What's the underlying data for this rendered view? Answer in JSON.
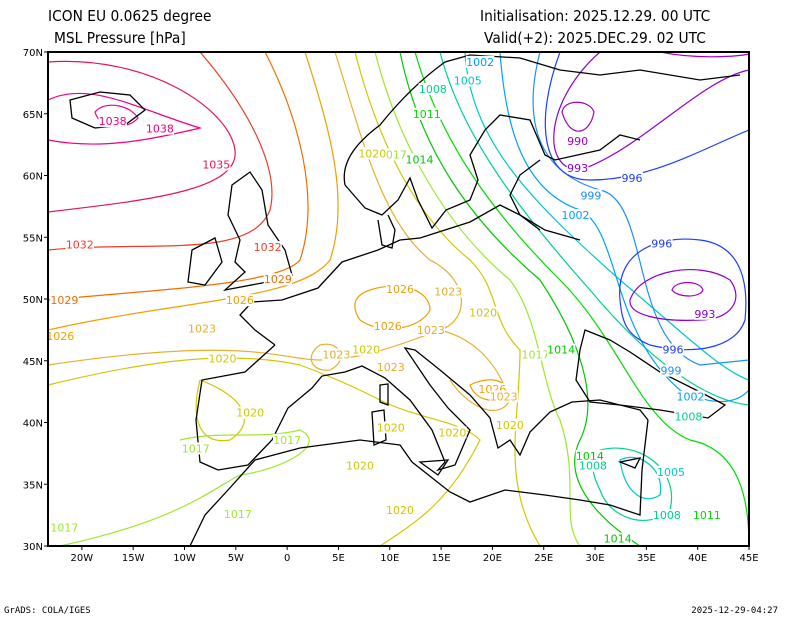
{
  "header": {
    "model": "ICON EU 0.0625 degree",
    "variable": "MSL Pressure [hPa]",
    "init": "Initialisation: 2025.12.29. 00 UTC",
    "valid": "Valid(+2): 2025.DEC.29. 02 UTC"
  },
  "footer": {
    "credit": "GrADS: COLA/IGES",
    "timestamp": "2025-12-29-04:27"
  },
  "axes": {
    "lon_ticks": [
      {
        "lon": -20,
        "label": "20W"
      },
      {
        "lon": -15,
        "label": "15W"
      },
      {
        "lon": -10,
        "label": "10W"
      },
      {
        "lon": -5,
        "label": "5W"
      },
      {
        "lon": 0,
        "label": "0"
      },
      {
        "lon": 5,
        "label": "5E"
      },
      {
        "lon": 10,
        "label": "10E"
      },
      {
        "lon": 15,
        "label": "15E"
      },
      {
        "lon": 20,
        "label": "20E"
      },
      {
        "lon": 25,
        "label": "25E"
      },
      {
        "lon": 30,
        "label": "30E"
      },
      {
        "lon": 35,
        "label": "35E"
      },
      {
        "lon": 40,
        "label": "40E"
      },
      {
        "lon": 45,
        "label": "45E"
      }
    ],
    "lat_ticks": [
      {
        "lat": 70,
        "label": "70N"
      },
      {
        "lat": 65,
        "label": "65N"
      },
      {
        "lat": 60,
        "label": "60N"
      },
      {
        "lat": 55,
        "label": "55N"
      },
      {
        "lat": 50,
        "label": "50N"
      },
      {
        "lat": 45,
        "label": "45N"
      },
      {
        "lat": 40,
        "label": "40N"
      },
      {
        "lat": 35,
        "label": "35N"
      },
      {
        "lat": 30,
        "label": "30N"
      }
    ],
    "lon_range": [
      -23.3,
      45
    ],
    "lat_range": [
      30,
      70
    ]
  },
  "level_colors": {
    "990": "#a000c8",
    "993": "#8c00d2",
    "996": "#1e3cff",
    "999": "#1e8cff",
    "1002": "#00a0ff",
    "1005": "#00c8c8",
    "1008": "#00d28c",
    "1011": "#00dc00",
    "1014": "#00c800",
    "1017": "#a0e632",
    "1020": "#d2c800",
    "1023": "#e6af2d",
    "1026": "#f0a000",
    "1029": "#f06e00",
    "1032": "#f03c28",
    "1035": "#e6145a",
    "1038": "#f00082"
  },
  "contour_labels": [
    {
      "v": "1038",
      "lon": -17.0,
      "lat": 64.4
    },
    {
      "v": "1038",
      "lon": -12.4,
      "lat": 63.8
    },
    {
      "v": "1035",
      "lon": -6.9,
      "lat": 60.9
    },
    {
      "v": "1032",
      "lon": -20.2,
      "lat": 54.4
    },
    {
      "v": "1032",
      "lon": -1.9,
      "lat": 54.2
    },
    {
      "v": "1029",
      "lon": -0.9,
      "lat": 51.6
    },
    {
      "v": "1029",
      "lon": -21.7,
      "lat": 49.9
    },
    {
      "v": "1026",
      "lon": -4.6,
      "lat": 49.9
    },
    {
      "v": "1026",
      "lon": -22.1,
      "lat": 47.0
    },
    {
      "v": "1023",
      "lon": -8.3,
      "lat": 47.6
    },
    {
      "v": "1020",
      "lon": -6.3,
      "lat": 45.2
    },
    {
      "v": "1020",
      "lon": -3.6,
      "lat": 40.8
    },
    {
      "v": "1017",
      "lon": 0.0,
      "lat": 38.6
    },
    {
      "v": "1017",
      "lon": -8.9,
      "lat": 37.9
    },
    {
      "v": "1017",
      "lon": -4.8,
      "lat": 32.6
    },
    {
      "v": "1017",
      "lon": -21.7,
      "lat": 31.5
    },
    {
      "v": "1020",
      "lon": 7.1,
      "lat": 36.5
    },
    {
      "v": "1020",
      "lon": 11.0,
      "lat": 32.9
    },
    {
      "v": "1026",
      "lon": 11.0,
      "lat": 50.8
    },
    {
      "v": "1023",
      "lon": 15.7,
      "lat": 50.6
    },
    {
      "v": "1020",
      "lon": 19.1,
      "lat": 48.9
    },
    {
      "v": "1026",
      "lon": 9.8,
      "lat": 47.8
    },
    {
      "v": "1023",
      "lon": 14.0,
      "lat": 47.5
    },
    {
      "v": "1020",
      "lon": 7.7,
      "lat": 45.9
    },
    {
      "v": "1023",
      "lon": 4.8,
      "lat": 45.5
    },
    {
      "v": "1023",
      "lon": 10.1,
      "lat": 44.5
    },
    {
      "v": "1020",
      "lon": 10.1,
      "lat": 39.6
    },
    {
      "v": "1020",
      "lon": 16.1,
      "lat": 39.2
    },
    {
      "v": "1026",
      "lon": 20.0,
      "lat": 42.7
    },
    {
      "v": "1023",
      "lon": 21.1,
      "lat": 42.1
    },
    {
      "v": "1020",
      "lon": 21.7,
      "lat": 39.8
    },
    {
      "v": "1017",
      "lon": 24.2,
      "lat": 45.5
    },
    {
      "v": "1014",
      "lon": 26.7,
      "lat": 45.9
    },
    {
      "v": "1014",
      "lon": 29.5,
      "lat": 37.3
    },
    {
      "v": "1008",
      "lon": 29.8,
      "lat": 36.5
    },
    {
      "v": "1005",
      "lon": 37.4,
      "lat": 36.0
    },
    {
      "v": "1008",
      "lon": 37.0,
      "lat": 32.5
    },
    {
      "v": "1011",
      "lon": 40.9,
      "lat": 32.5
    },
    {
      "v": "1014",
      "lon": 32.2,
      "lat": 30.6
    },
    {
      "v": "1008",
      "lon": 39.1,
      "lat": 40.5
    },
    {
      "v": "1002",
      "lon": 39.3,
      "lat": 42.1
    },
    {
      "v": "999",
      "lon": 37.4,
      "lat": 44.2
    },
    {
      "v": "996",
      "lon": 37.6,
      "lat": 45.9
    },
    {
      "v": "993",
      "lon": 40.7,
      "lat": 48.8
    },
    {
      "v": "996",
      "lon": 36.5,
      "lat": 54.5
    },
    {
      "v": "1002",
      "lon": 28.1,
      "lat": 56.8
    },
    {
      "v": "999",
      "lon": 29.6,
      "lat": 58.4
    },
    {
      "v": "996",
      "lon": 33.6,
      "lat": 59.8
    },
    {
      "v": "993",
      "lon": 28.3,
      "lat": 60.6
    },
    {
      "v": "990",
      "lon": 28.3,
      "lat": 62.8
    },
    {
      "v": "1014",
      "lon": 12.9,
      "lat": 61.3
    },
    {
      "v": "1017",
      "lon": 10.3,
      "lat": 61.7
    },
    {
      "v": "1020",
      "lon": 8.3,
      "lat": 61.8
    },
    {
      "v": "1011",
      "lon": 13.6,
      "lat": 65.0
    },
    {
      "v": "1008",
      "lon": 14.2,
      "lat": 67.0
    },
    {
      "v": "1005",
      "lon": 17.6,
      "lat": 67.7
    },
    {
      "v": "1002",
      "lon": 18.8,
      "lat": 69.2
    }
  ]
}
